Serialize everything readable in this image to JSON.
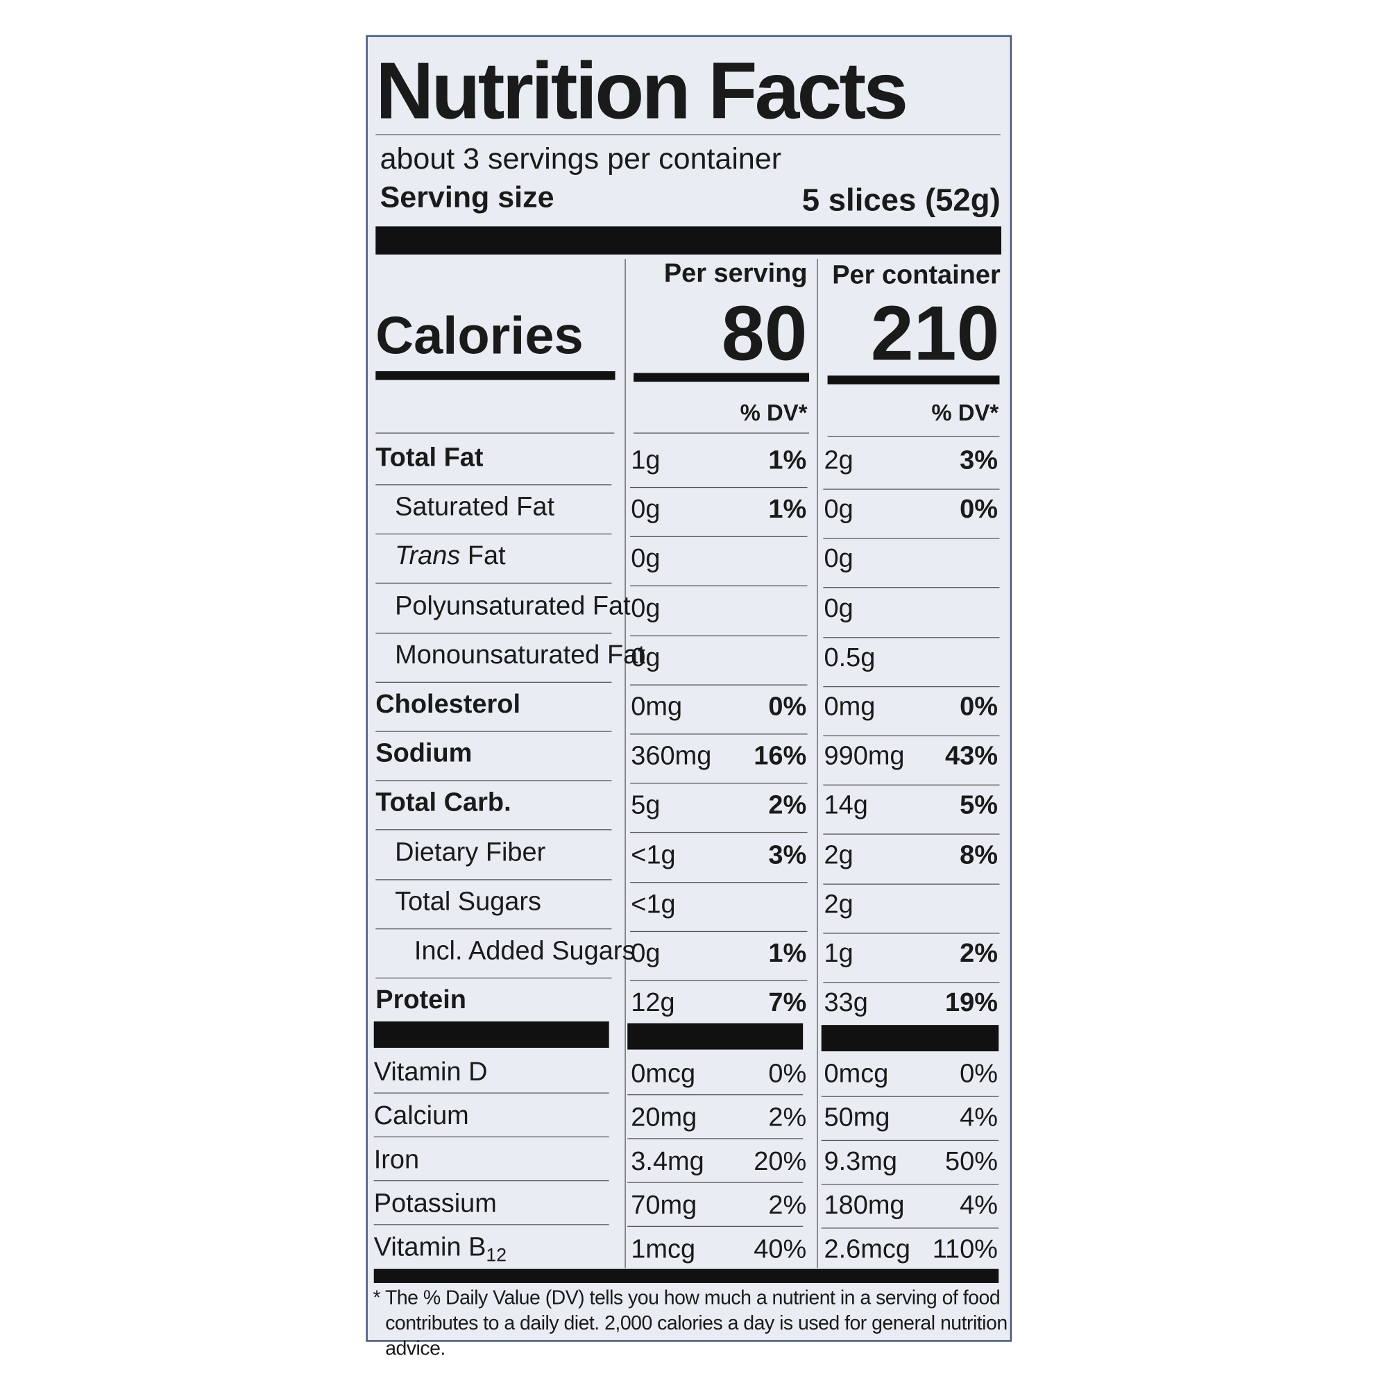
{
  "header": {
    "title": "Nutrition Facts",
    "servings": "about 3 servings per container",
    "serving_size_label": "Serving size",
    "serving_size": "5 slices (52g)"
  },
  "calories": {
    "label": "Calories",
    "per_serving_label": "Per serving",
    "per_serving": "80",
    "per_container_label": "Per container",
    "per_container": "210"
  },
  "dv_headers": [
    "% DV*",
    "% DV*"
  ],
  "nutrients": [
    {
      "name": "Total Fat",
      "bold": true,
      "indent": 0,
      "serving_amount": "1g",
      "serving_dv": "1%",
      "container_amount": "2g",
      "container_dv": "3%"
    },
    {
      "name": "Saturated Fat",
      "bold": false,
      "indent": 1,
      "serving_amount": "0g",
      "serving_dv": "1%",
      "container_amount": "0g",
      "container_dv": "0%"
    },
    {
      "name": [
        {
          "text": "Trans",
          "style": "italic"
        },
        {
          "text": " Fat"
        }
      ],
      "bold": false,
      "indent": 1,
      "serving_amount": "0g",
      "container_amount": "0g"
    },
    {
      "name": "Polyunsaturated Fat",
      "bold": false,
      "indent": 1,
      "serving_amount": "0g",
      "container_amount": "0g"
    },
    {
      "name": "Monounsaturated Fat",
      "bold": false,
      "indent": 1,
      "serving_amount": "0g",
      "container_amount": "0.5g"
    },
    {
      "name": "Cholesterol",
      "bold": true,
      "indent": 0,
      "serving_amount": "0mg",
      "serving_dv": "0%",
      "container_amount": "0mg",
      "container_dv": "0%"
    },
    {
      "name": "Sodium",
      "bold": true,
      "indent": 0,
      "serving_amount": "360mg",
      "serving_dv": "16%",
      "container_amount": "990mg",
      "container_dv": "43%"
    },
    {
      "name": "Total Carb.",
      "bold": true,
      "indent": 0,
      "serving_amount": "5g",
      "serving_dv": "2%",
      "container_amount": "14g",
      "container_dv": "5%"
    },
    {
      "name": "Dietary Fiber",
      "bold": false,
      "indent": 1,
      "serving_amount": "<1g",
      "serving_dv": "3%",
      "container_amount": "2g",
      "container_dv": "8%"
    },
    {
      "name": "Total Sugars",
      "bold": false,
      "indent": 1,
      "serving_amount": "<1g",
      "container_amount": "2g"
    },
    {
      "name": "Incl. Added Sugars",
      "bold": false,
      "indent": 2,
      "serving_amount": "0g",
      "serving_dv": "1%",
      "container_amount": "1g",
      "container_dv": "2%"
    },
    {
      "name": "Protein",
      "bold": true,
      "indent": 0,
      "serving_amount": "12g",
      "serving_dv": "7%",
      "container_amount": "33g",
      "container_dv": "19%"
    }
  ],
  "vitamins": [
    {
      "name": "Vitamin D",
      "serving_amount": "0mcg",
      "serving_dv": "0%",
      "container_amount": "0mcg",
      "container_dv": "0%"
    },
    {
      "name": "Calcium",
      "serving_amount": "20mg",
      "serving_dv": "2%",
      "container_amount": "50mg",
      "container_dv": "4%"
    },
    {
      "name": "Iron",
      "serving_amount": "3.4mg",
      "serving_dv": "20%",
      "container_amount": "9.3mg",
      "container_dv": "50%"
    },
    {
      "name": "Potassium",
      "serving_amount": "70mg",
      "serving_dv": "2%",
      "container_amount": "180mg",
      "container_dv": "4%"
    },
    {
      "name": [
        {
          "text": "Vitamin B"
        },
        {
          "text": "12",
          "style": "sub"
        }
      ],
      "serving_amount": "1mcg",
      "serving_dv": "40%",
      "container_amount": "2.6mcg",
      "container_dv": "110%"
    }
  ],
  "footnote": "* The % Daily Value (DV) tells you how much a nutrient in a serving of food contributes to a daily diet. 2,000 calories a day is used for general nutrition advice."
}
